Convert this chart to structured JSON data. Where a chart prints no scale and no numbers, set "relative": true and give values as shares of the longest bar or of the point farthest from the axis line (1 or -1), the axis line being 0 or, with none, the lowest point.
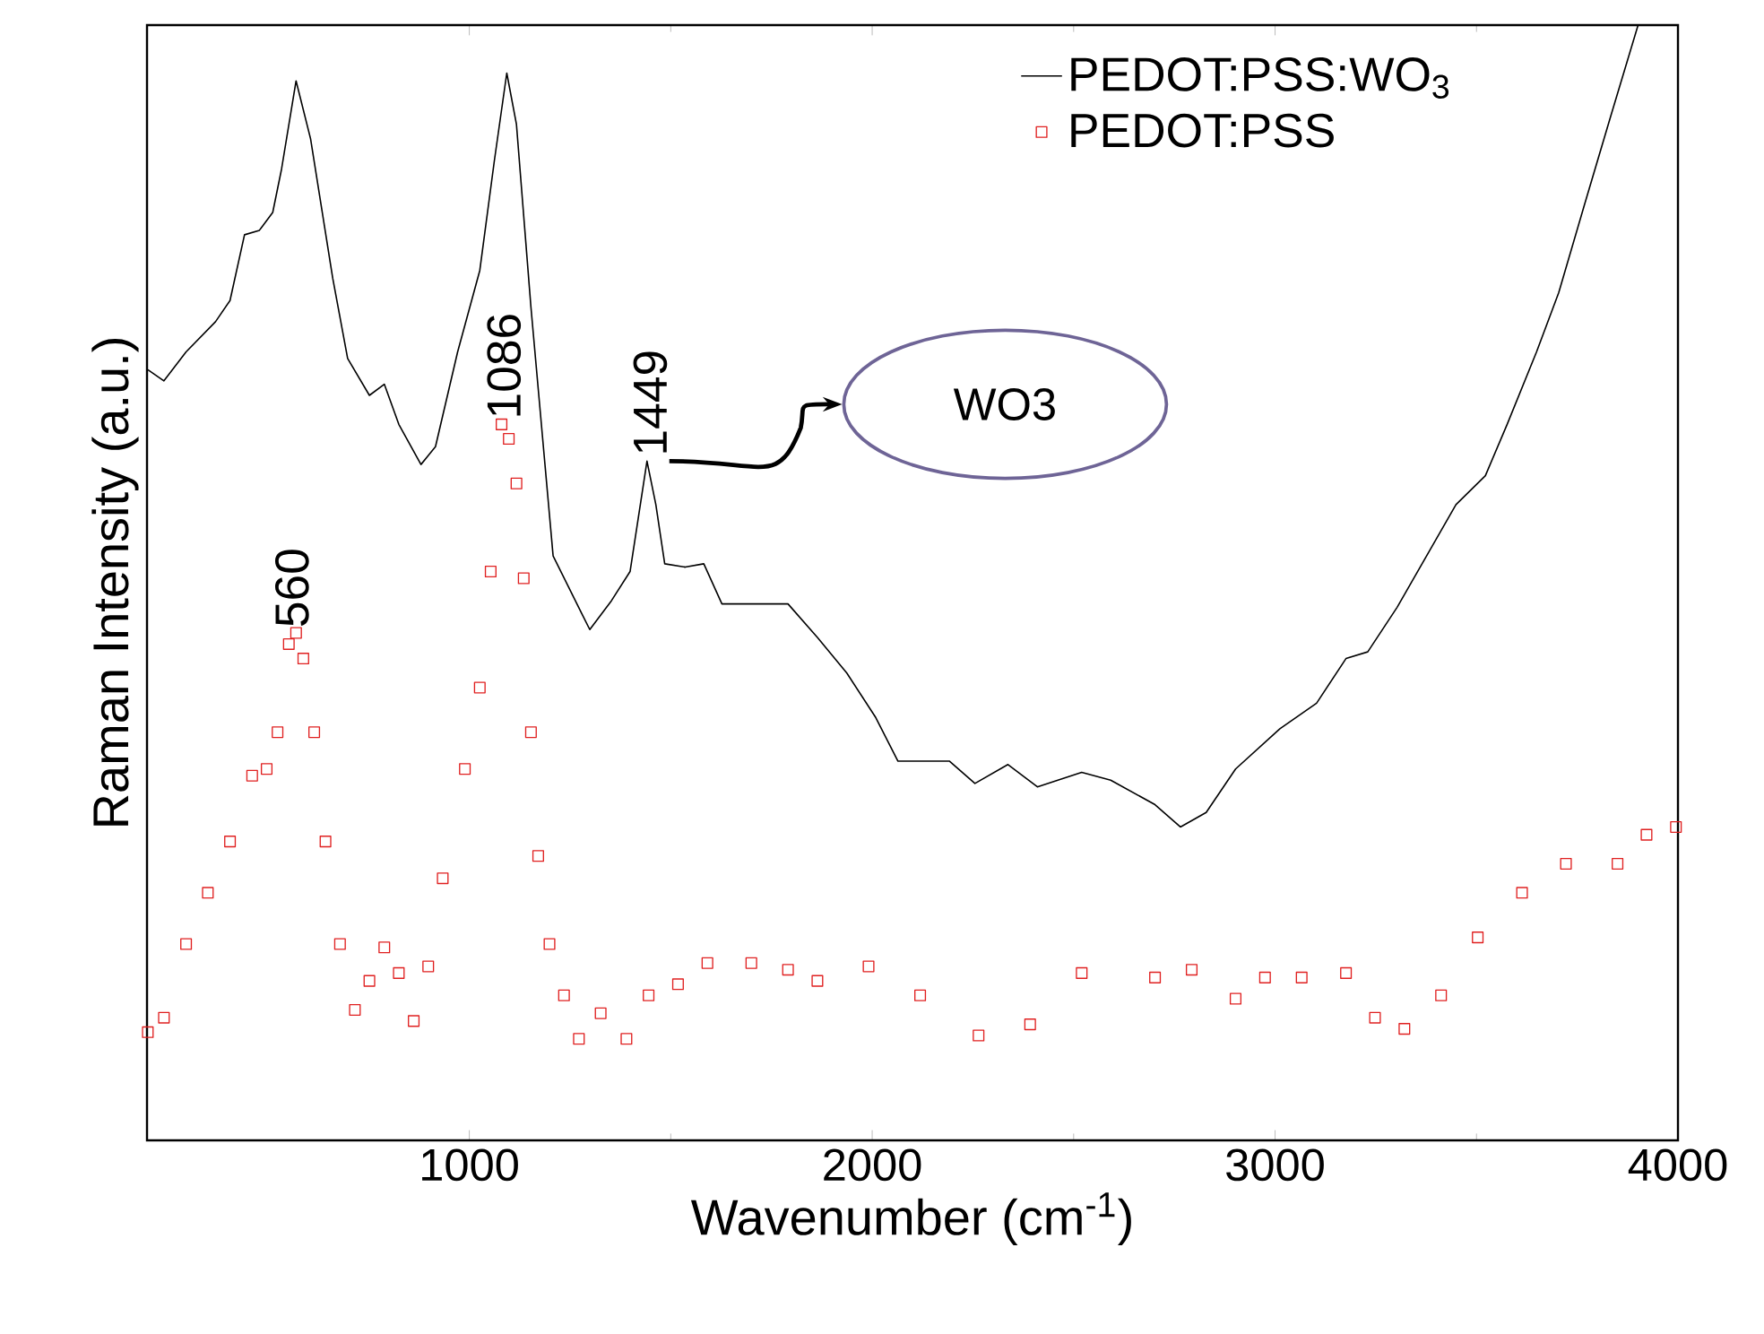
{
  "chart_data": {
    "type": "line",
    "relative": true,
    "xlabel": "Wavenumber (cm$^{-1}$)",
    "ylabel": "Raman Intensity (a.u.)",
    "xlim": [
      200,
      4000
    ],
    "xticks": [
      1000,
      2000,
      3000,
      4000
    ],
    "legend": "top right",
    "grid": false,
    "series": [
      {
        "name": "PEDOT:PSS:WO$_{3}$",
        "color": "#000000",
        "marker": "none",
        "line_style": "solid",
        "x": [
          202,
          242,
          297,
          370,
          406,
          442,
          479,
          512,
          534,
          570,
          606,
          661,
          698,
          752,
          789,
          825,
          880,
          916,
          971,
          1026,
          1062,
          1093,
          1117,
          1153,
          1208,
          1281,
          1299,
          1353,
          1399,
          1441,
          1463,
          1485,
          1536,
          1582,
          1627,
          1700,
          1791,
          1864,
          1937,
          2009,
          2064,
          2119,
          2192,
          2255,
          2337,
          2410,
          2520,
          2592,
          2702,
          2765,
          2829,
          2902,
          3012,
          3103,
          3176,
          3230,
          3303,
          3376,
          3449,
          3522,
          3576,
          3649,
          3704,
          3768,
          3832,
          3901
        ],
        "values": [
          0.691,
          0.681,
          0.707,
          0.734,
          0.753,
          0.812,
          0.816,
          0.832,
          0.871,
          0.95,
          0.898,
          0.773,
          0.701,
          0.668,
          0.678,
          0.642,
          0.606,
          0.622,
          0.707,
          0.78,
          0.878,
          0.957,
          0.911,
          0.747,
          0.524,
          0.471,
          0.458,
          0.484,
          0.51,
          0.609,
          0.57,
          0.517,
          0.514,
          0.517,
          0.481,
          0.481,
          0.481,
          0.451,
          0.419,
          0.379,
          0.34,
          0.34,
          0.34,
          0.32,
          0.337,
          0.317,
          0.33,
          0.323,
          0.301,
          0.281,
          0.294,
          0.333,
          0.369,
          0.392,
          0.432,
          0.438,
          0.478,
          0.524,
          0.57,
          0.596,
          0.642,
          0.707,
          0.76,
          0.839,
          0.917,
          1.0
        ]
      },
      {
        "name": "PEDOT:PSS",
        "type": "scatter",
        "color": "#e02020",
        "marker": "square",
        "x": [
          202,
          242,
          297,
          351,
          406,
          461,
          497,
          524,
          552,
          570,
          588,
          615,
          643,
          679,
          716,
          752,
          789,
          825,
          862,
          898,
          934,
          989,
          1026,
          1053,
          1080,
          1098,
          1117,
          1135,
          1153,
          1171,
          1199,
          1235,
          1272,
          1326,
          1390,
          1445,
          1518,
          1591,
          1700,
          1791,
          1864,
          1991,
          2119,
          2264,
          2392,
          2520,
          2702,
          2793,
          2902,
          2975,
          3066,
          3176,
          3248,
          3321,
          3412,
          3503,
          3613,
          3722,
          3850,
          3922,
          3995
        ],
        "values": [
          0.097,
          0.11,
          0.176,
          0.222,
          0.268,
          0.327,
          0.333,
          0.366,
          0.445,
          0.455,
          0.432,
          0.366,
          0.268,
          0.176,
          0.117,
          0.143,
          0.173,
          0.15,
          0.107,
          0.156,
          0.235,
          0.333,
          0.406,
          0.51,
          0.642,
          0.629,
          0.589,
          0.504,
          0.366,
          0.255,
          0.176,
          0.13,
          0.091,
          0.114,
          0.091,
          0.13,
          0.14,
          0.159,
          0.159,
          0.153,
          0.143,
          0.156,
          0.13,
          0.094,
          0.104,
          0.15,
          0.146,
          0.153,
          0.127,
          0.146,
          0.146,
          0.15,
          0.11,
          0.1,
          0.13,
          0.182,
          0.222,
          0.248,
          0.248,
          0.274,
          0.281
        ]
      }
    ],
    "annotations": [
      {
        "text": "560",
        "x": 560,
        "y": 0.455
      },
      {
        "text": "1086",
        "x": 1086,
        "y": 0.642
      },
      {
        "text": "1449",
        "x": 1449,
        "y": 0.609
      },
      "WO3"
    ]
  }
}
